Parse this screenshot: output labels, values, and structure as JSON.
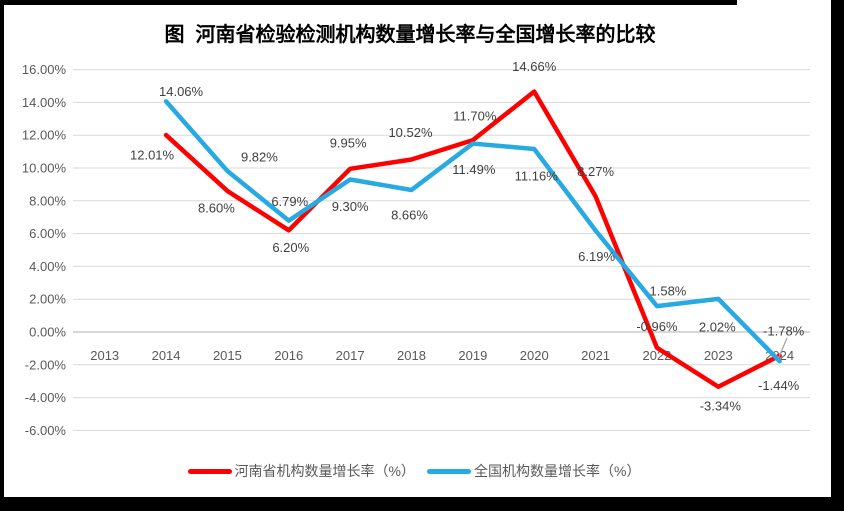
{
  "window": {
    "background": "#FFFFFF",
    "frame_border_color": "#000000"
  },
  "title": "图  河南省检验检测机构数量增长率与全国增长率的比较",
  "chart_data": {
    "type": "line",
    "title": "图  河南省检验检测机构数量增长率与全国增长率的比较",
    "categories": [
      "2013",
      "2014",
      "2015",
      "2016",
      "2017",
      "2018",
      "2019",
      "2020",
      "2021",
      "2022",
      "2023",
      "2024"
    ],
    "series": [
      {
        "name": "河南省机构数量增长率（%）",
        "color": "#FF0000",
        "values": [
          null,
          12.01,
          8.6,
          6.2,
          9.95,
          10.52,
          11.7,
          14.66,
          8.27,
          -0.96,
          -3.34,
          -1.44
        ]
      },
      {
        "name": "全国机构数量增长率（%）",
        "color": "#27A9E1",
        "values": [
          null,
          14.06,
          9.82,
          6.79,
          9.3,
          8.66,
          11.49,
          11.16,
          6.19,
          1.58,
          2.02,
          -1.78
        ]
      }
    ],
    "ylim": [
      -6,
      16
    ],
    "ytick_step": 2,
    "ytick_format": "0.00%",
    "data_labels": true,
    "grid": true,
    "legend_position": "bottom",
    "gridline_color": "#D9D9D9",
    "zero_axis_color": "#BFBFBF",
    "axis_label_color": "#595959",
    "data_label_color": "#404040",
    "leader_line_color": "#A6A6A6"
  }
}
